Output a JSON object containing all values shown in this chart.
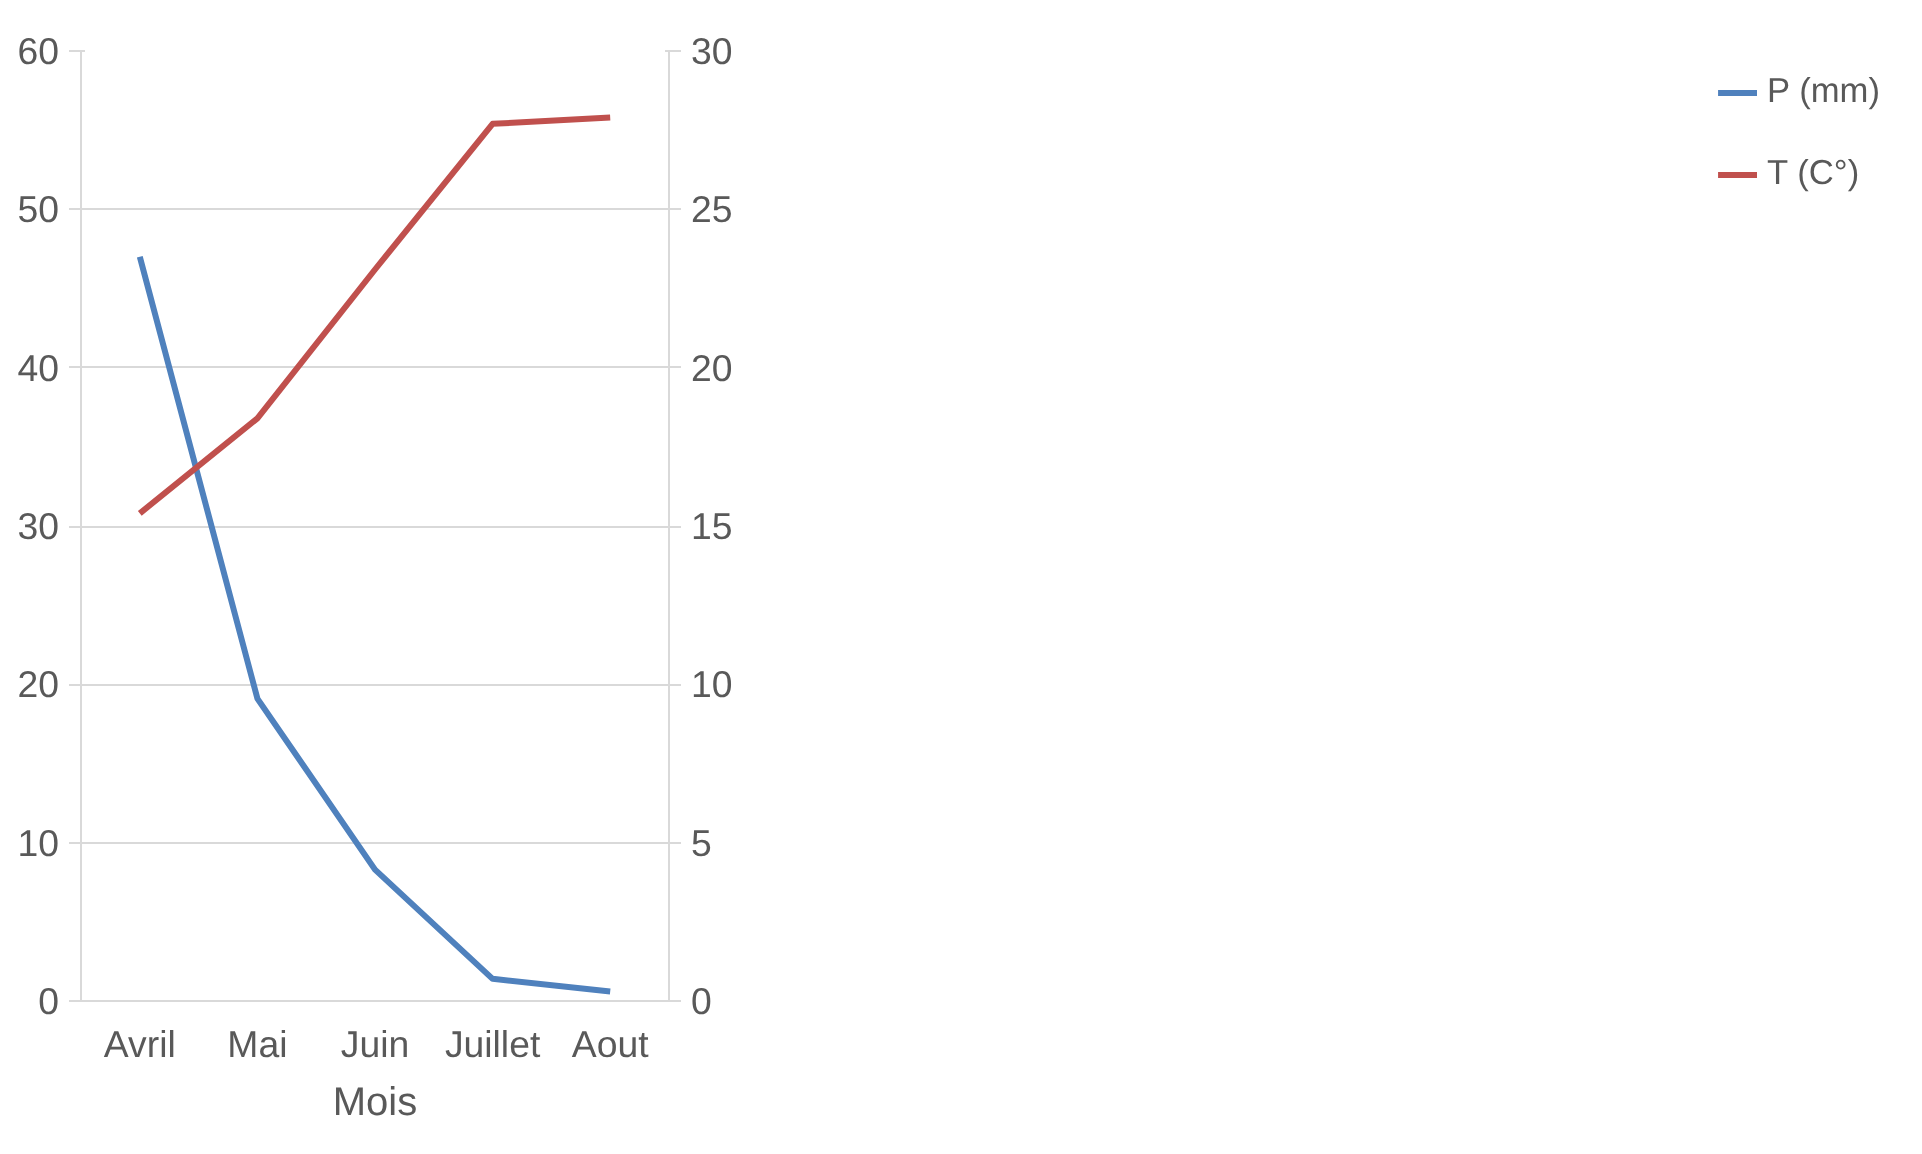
{
  "chart_data": {
    "type": "line",
    "xlabel": "Mois",
    "categories": [
      "Avril",
      "Mai",
      "Juin",
      "Juillet",
      "Aout"
    ],
    "series": [
      {
        "name": "P (mm)",
        "color": "#4f81bd",
        "values": [
          47,
          19.1,
          8.3,
          1.4,
          0.6
        ]
      },
      {
        "name": "T (C°)",
        "color": "#c0504d",
        "values": [
          15.4,
          18.4,
          23.1,
          27.7,
          27.9
        ],
        "axis": "y2"
      }
    ],
    "ylim": [
      0,
      60
    ],
    "yticks": [
      0,
      10,
      20,
      30,
      40,
      50,
      60
    ],
    "y2lim": [
      0,
      30
    ],
    "y2ticks": [
      0,
      5,
      10,
      15,
      20,
      25,
      30
    ],
    "grid": "y",
    "legend": "right"
  }
}
